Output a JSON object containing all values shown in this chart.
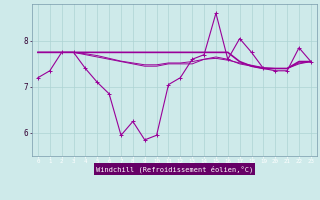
{
  "xlabel": "Windchill (Refroidissement éolien,°C)",
  "background_color": "#ceeaea",
  "grid_color": "#aed4d4",
  "line_color": "#990099",
  "xlabel_bg": "#660066",
  "xlabel_fg": "#ffffff",
  "x": [
    0,
    1,
    2,
    3,
    4,
    5,
    6,
    7,
    8,
    9,
    10,
    11,
    12,
    13,
    14,
    15,
    16,
    17,
    18,
    19,
    20,
    21,
    22,
    23
  ],
  "line1": [
    7.2,
    7.35,
    7.75,
    7.75,
    7.4,
    7.1,
    6.85,
    5.95,
    6.25,
    5.85,
    5.95,
    7.05,
    7.2,
    7.6,
    7.7,
    8.6,
    7.6,
    8.05,
    7.75,
    7.4,
    7.35,
    7.35,
    7.85,
    7.55
  ],
  "line2": [
    7.75,
    7.75,
    7.75,
    7.75,
    7.75,
    7.75,
    7.75,
    7.75,
    7.75,
    7.75,
    7.75,
    7.75,
    7.75,
    7.75,
    7.75,
    7.75,
    7.75,
    7.55,
    7.45,
    7.4,
    7.4,
    7.4,
    7.55,
    7.55
  ],
  "line3": [
    7.75,
    7.75,
    7.75,
    7.75,
    7.7,
    7.65,
    7.6,
    7.55,
    7.5,
    7.45,
    7.45,
    7.5,
    7.5,
    7.5,
    7.6,
    7.65,
    7.6,
    7.5,
    7.45,
    7.4,
    7.4,
    7.4,
    7.5,
    7.55
  ],
  "line4": [
    7.75,
    7.75,
    7.75,
    7.75,
    7.72,
    7.68,
    7.62,
    7.56,
    7.52,
    7.48,
    7.48,
    7.52,
    7.52,
    7.55,
    7.6,
    7.62,
    7.58,
    7.52,
    7.47,
    7.42,
    7.4,
    7.4,
    7.52,
    7.55
  ],
  "ylim": [
    5.5,
    8.8
  ],
  "yticks": [
    6,
    7,
    8
  ],
  "figsize": [
    3.2,
    2.0
  ],
  "dpi": 100
}
